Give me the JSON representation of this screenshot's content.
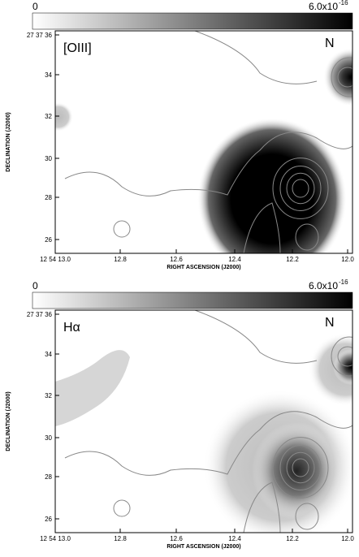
{
  "panels": [
    {
      "colorbar": {
        "min_label": "0",
        "max_label": "6.0x10",
        "max_exponent": "-16"
      },
      "line_label": "[OIII]",
      "north_label": "N",
      "y_axis": {
        "label": "DECLINATION (J2000)",
        "ticks": [
          "27 37 36",
          "34",
          "32",
          "30",
          "28",
          "26"
        ]
      },
      "x_axis": {
        "label": "RIGHT ASCENSION (J2000)",
        "ticks": [
          "12 54 13.0",
          "12.8",
          "12.6",
          "12.4",
          "12.2",
          "12.0"
        ]
      }
    },
    {
      "colorbar": {
        "min_label": "0",
        "max_label": "6.0x10",
        "max_exponent": "-16"
      },
      "line_label": "Hα",
      "north_label": "N",
      "y_axis": {
        "label": "DECLINATION (J2000)",
        "ticks": [
          "27 37 36",
          "34",
          "32",
          "30",
          "28",
          "26"
        ]
      },
      "x_axis": {
        "label": "RIGHT ASCENSION (J2000)",
        "ticks": [
          "12 54 13.0",
          "12.8",
          "12.6",
          "12.4",
          "12.2",
          "12.0"
        ]
      }
    }
  ]
}
